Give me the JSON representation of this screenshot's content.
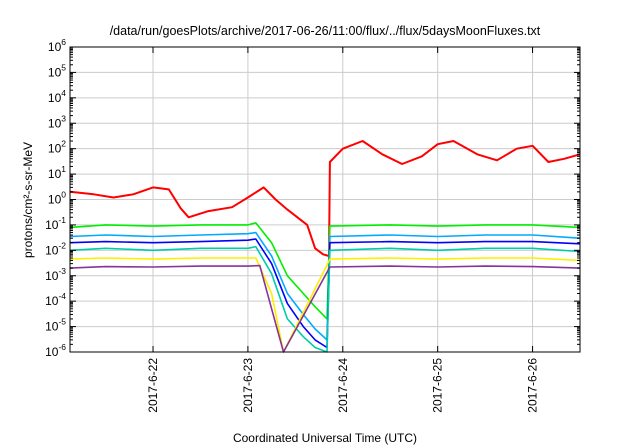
{
  "chart_data": {
    "type": "line",
    "title": "/data/run/goesPlots/archive/2017-06-26/11:00/flux/../flux/5daysMoonFluxes.txt",
    "xlabel": "Coordinated Universal Time (UTC)",
    "ylabel": "protons/cm²-s-sr-MeV",
    "y_scale": "log",
    "ylim_exponents": [
      -6,
      6
    ],
    "y_tick_base": "10",
    "y_tick_exponents": [
      "-6",
      "-5",
      "-4",
      "-3",
      "-2",
      "-1",
      "0",
      "1",
      "2",
      "3",
      "4",
      "5",
      "6"
    ],
    "x_units": "days",
    "xlim": [
      "2017-06-21 03:00",
      "2017-06-26 12:00"
    ],
    "x_ticks": [
      "2017-6-22",
      "2017-6-23",
      "2017-6-24",
      "2017-6-25",
      "2017-6-26"
    ],
    "grid": true,
    "legend": "none",
    "series": [
      {
        "color": "#ff0000",
        "points": [
          [
            "2017-06-21 03:00",
            2.0
          ],
          [
            "2017-06-21 09:00",
            1.6
          ],
          [
            "2017-06-21 14:00",
            1.2
          ],
          [
            "2017-06-21 19:00",
            1.6
          ],
          [
            "2017-06-22 00:00",
            3.0
          ],
          [
            "2017-06-22 04:00",
            2.5
          ],
          [
            "2017-06-22 07:00",
            0.45
          ],
          [
            "2017-06-22 09:00",
            0.2
          ],
          [
            "2017-06-22 14:00",
            0.35
          ],
          [
            "2017-06-22 20:00",
            0.5
          ],
          [
            "2017-06-23 00:00",
            1.2
          ],
          [
            "2017-06-23 04:00",
            3.0
          ],
          [
            "2017-06-23 07:00",
            1.0
          ],
          [
            "2017-06-23 10:00",
            0.4
          ],
          [
            "2017-06-23 15:00",
            0.1
          ],
          [
            "2017-06-23 17:00",
            0.012
          ],
          [
            "2017-06-23 19:00",
            0.007
          ],
          [
            "2017-06-23 20:30",
            0.006
          ],
          [
            "2017-06-23 20:45",
            30
          ],
          [
            "2017-06-24 00:00",
            100
          ],
          [
            "2017-06-24 05:00",
            200
          ],
          [
            "2017-06-24 10:00",
            60
          ],
          [
            "2017-06-24 15:00",
            25
          ],
          [
            "2017-06-24 20:00",
            50
          ],
          [
            "2017-06-25 00:00",
            150
          ],
          [
            "2017-06-25 04:00",
            200
          ],
          [
            "2017-06-25 10:00",
            60
          ],
          [
            "2017-06-25 15:00",
            35
          ],
          [
            "2017-06-25 20:00",
            100
          ],
          [
            "2017-06-26 00:00",
            130
          ],
          [
            "2017-06-26 04:00",
            30
          ],
          [
            "2017-06-26 08:00",
            40
          ],
          [
            "2017-06-26 12:00",
            60
          ]
        ]
      },
      {
        "color": "#00ee00",
        "points": [
          [
            "2017-06-21 03:00",
            0.08
          ],
          [
            "2017-06-21 12:00",
            0.1
          ],
          [
            "2017-06-22 00:00",
            0.09
          ],
          [
            "2017-06-22 12:00",
            0.1
          ],
          [
            "2017-06-23 00:00",
            0.1
          ],
          [
            "2017-06-23 02:00",
            0.12
          ],
          [
            "2017-06-23 06:00",
            0.02
          ],
          [
            "2017-06-23 10:00",
            0.001
          ],
          [
            "2017-06-23 14:00",
            0.0002
          ],
          [
            "2017-06-23 17:00",
            6e-05
          ],
          [
            "2017-06-23 20:00",
            2e-05
          ],
          [
            "2017-06-23 20:45",
            0.09
          ],
          [
            "2017-06-24 12:00",
            0.1
          ],
          [
            "2017-06-25 00:00",
            0.09
          ],
          [
            "2017-06-25 12:00",
            0.1
          ],
          [
            "2017-06-26 00:00",
            0.1
          ],
          [
            "2017-06-26 12:00",
            0.08
          ]
        ]
      },
      {
        "color": "#00aaff",
        "points": [
          [
            "2017-06-21 03:00",
            0.035
          ],
          [
            "2017-06-21 12:00",
            0.04
          ],
          [
            "2017-06-22 00:00",
            0.035
          ],
          [
            "2017-06-22 12:00",
            0.04
          ],
          [
            "2017-06-23 00:00",
            0.045
          ],
          [
            "2017-06-23 02:00",
            0.05
          ],
          [
            "2017-06-23 06:00",
            0.006
          ],
          [
            "2017-06-23 10:00",
            0.0002
          ],
          [
            "2017-06-23 14:00",
            3e-05
          ],
          [
            "2017-06-23 17:00",
            8e-06
          ],
          [
            "2017-06-23 20:00",
            3e-06
          ],
          [
            "2017-06-23 20:45",
            0.035
          ],
          [
            "2017-06-24 12:00",
            0.04
          ],
          [
            "2017-06-25 00:00",
            0.035
          ],
          [
            "2017-06-25 12:00",
            0.04
          ],
          [
            "2017-06-26 00:00",
            0.04
          ],
          [
            "2017-06-26 12:00",
            0.03
          ]
        ]
      },
      {
        "color": "#0000ff",
        "points": [
          [
            "2017-06-21 03:00",
            0.02
          ],
          [
            "2017-06-21 12:00",
            0.022
          ],
          [
            "2017-06-22 00:00",
            0.02
          ],
          [
            "2017-06-22 12:00",
            0.022
          ],
          [
            "2017-06-23 00:00",
            0.025
          ],
          [
            "2017-06-23 02:00",
            0.028
          ],
          [
            "2017-06-23 06:00",
            0.003
          ],
          [
            "2017-06-23 10:00",
            8e-05
          ],
          [
            "2017-06-23 14:00",
            1e-05
          ],
          [
            "2017-06-23 17:00",
            3e-06
          ],
          [
            "2017-06-23 20:00",
            1.5e-06
          ],
          [
            "2017-06-23 20:45",
            0.02
          ],
          [
            "2017-06-24 12:00",
            0.022
          ],
          [
            "2017-06-25 00:00",
            0.02
          ],
          [
            "2017-06-25 12:00",
            0.022
          ],
          [
            "2017-06-26 00:00",
            0.022
          ],
          [
            "2017-06-26 12:00",
            0.018
          ]
        ]
      },
      {
        "color": "#00ccaa",
        "points": [
          [
            "2017-06-21 03:00",
            0.01
          ],
          [
            "2017-06-21 12:00",
            0.012
          ],
          [
            "2017-06-22 00:00",
            0.01
          ],
          [
            "2017-06-22 12:00",
            0.012
          ],
          [
            "2017-06-23 00:00",
            0.012
          ],
          [
            "2017-06-23 02:00",
            0.014
          ],
          [
            "2017-06-23 06:00",
            0.0012
          ],
          [
            "2017-06-23 10:00",
            2e-05
          ],
          [
            "2017-06-23 14:00",
            4e-06
          ],
          [
            "2017-06-23 17:00",
            1.5e-06
          ],
          [
            "2017-06-23 20:00",
            1e-06
          ],
          [
            "2017-06-23 20:45",
            0.01
          ],
          [
            "2017-06-24 12:00",
            0.012
          ],
          [
            "2017-06-25 00:00",
            0.01
          ],
          [
            "2017-06-25 12:00",
            0.012
          ],
          [
            "2017-06-26 00:00",
            0.012
          ],
          [
            "2017-06-26 12:00",
            0.009
          ]
        ]
      },
      {
        "color": "#ffee00",
        "points": [
          [
            "2017-06-21 03:00",
            0.0045
          ],
          [
            "2017-06-21 12:00",
            0.005
          ],
          [
            "2017-06-22 00:00",
            0.0045
          ],
          [
            "2017-06-22 12:00",
            0.005
          ],
          [
            "2017-06-23 00:00",
            0.005
          ],
          [
            "2017-06-23 02:00",
            0.005
          ],
          [
            "2017-06-23 06:00",
            0.0002
          ],
          [
            "2017-06-23 09:00",
            1e-06
          ],
          [
            "2017-06-23 20:45",
            0.0045
          ],
          [
            "2017-06-24 12:00",
            0.005
          ],
          [
            "2017-06-25 00:00",
            0.0045
          ],
          [
            "2017-06-25 12:00",
            0.005
          ],
          [
            "2017-06-26 00:00",
            0.005
          ],
          [
            "2017-06-26 12:00",
            0.004
          ]
        ]
      },
      {
        "color": "#883399",
        "points": [
          [
            "2017-06-21 03:00",
            0.002
          ],
          [
            "2017-06-21 12:00",
            0.0023
          ],
          [
            "2017-06-22 00:00",
            0.0022
          ],
          [
            "2017-06-22 12:00",
            0.0024
          ],
          [
            "2017-06-23 00:00",
            0.0024
          ],
          [
            "2017-06-23 03:00",
            0.0025
          ],
          [
            "2017-06-23 06:00",
            5e-05
          ],
          [
            "2017-06-23 09:00",
            1e-06
          ],
          [
            "2017-06-23 20:45",
            0.0022
          ],
          [
            "2017-06-24 12:00",
            0.0024
          ],
          [
            "2017-06-25 00:00",
            0.0022
          ],
          [
            "2017-06-25 12:00",
            0.0024
          ],
          [
            "2017-06-26 00:00",
            0.0023
          ],
          [
            "2017-06-26 12:00",
            0.002
          ]
        ]
      }
    ]
  }
}
